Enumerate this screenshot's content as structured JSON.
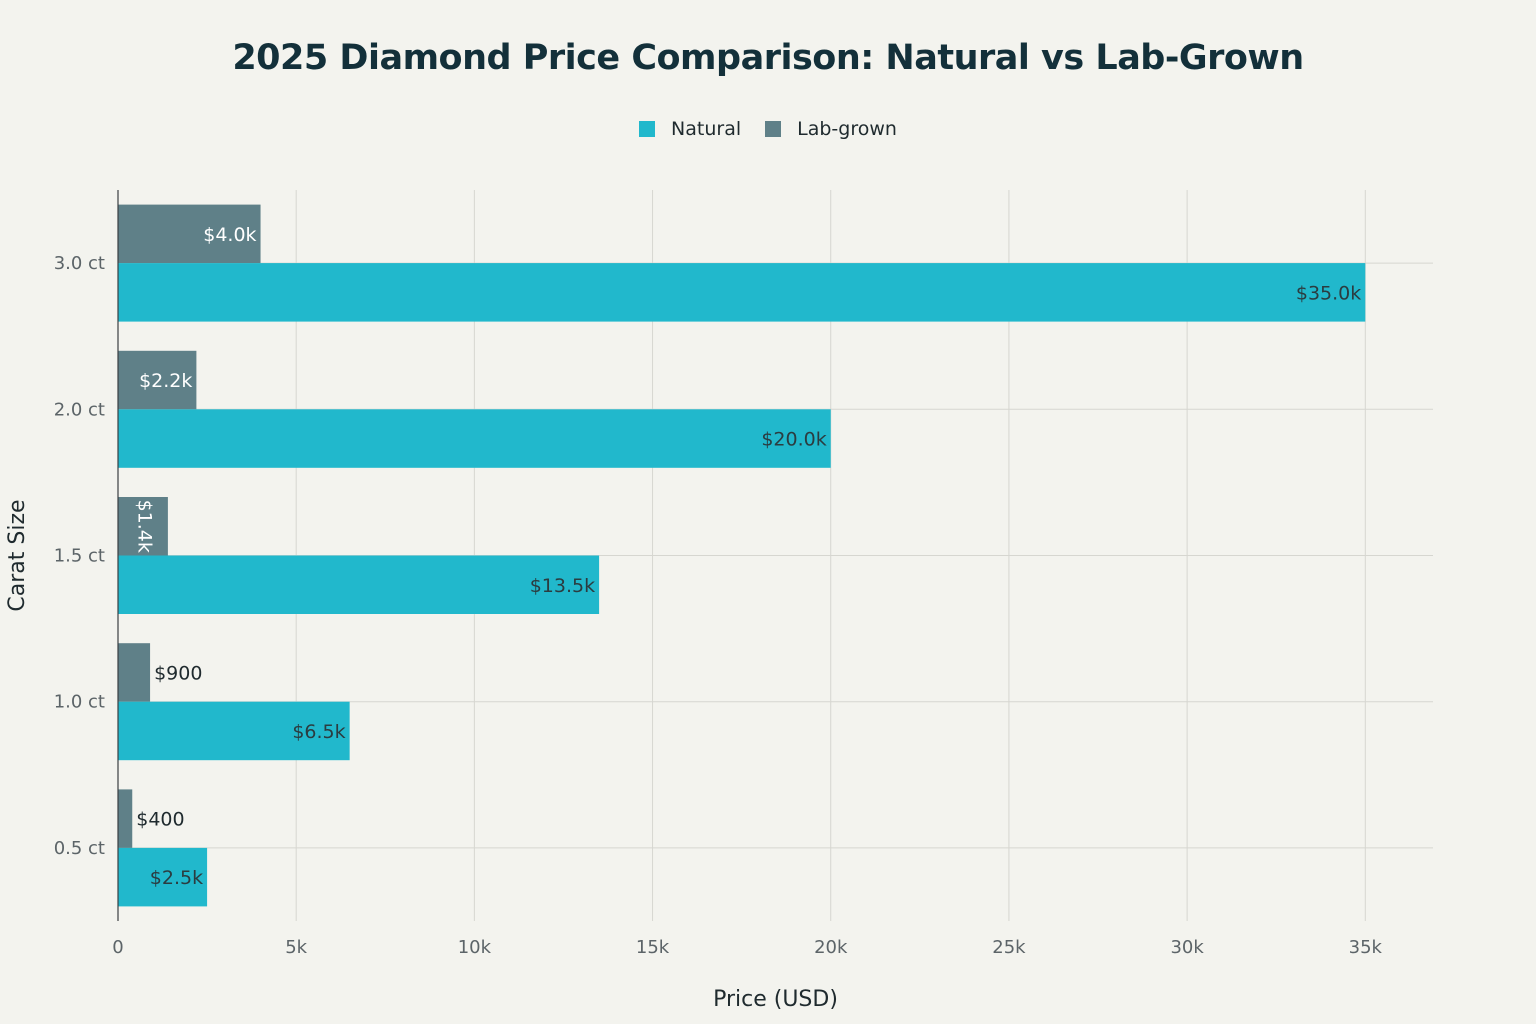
{
  "chart_data": {
    "type": "bar",
    "orientation": "horizontal",
    "title": "2025 Diamond Price Comparison: Natural vs Lab-Grown",
    "xlabel": "Price (USD)",
    "ylabel": "Carat Size",
    "xlim": [
      0,
      36900
    ],
    "xticks": [
      0,
      5000,
      10000,
      15000,
      20000,
      25000,
      30000,
      35000
    ],
    "xtick_labels": [
      "0",
      "5k",
      "10k",
      "15k",
      "20k",
      "25k",
      "30k",
      "35k"
    ],
    "categories": [
      "0.5 ct",
      "1.0 ct",
      "1.5 ct",
      "2.0 ct",
      "3.0 ct"
    ],
    "legend_position": "top-center",
    "grid": true,
    "series": [
      {
        "name": "Natural",
        "color": "#21b8cc",
        "values": [
          2500,
          6500,
          13500,
          20000,
          35000
        ],
        "labels": [
          "$2.5k",
          "$6.5k",
          "$13.5k",
          "$20.0k",
          "$35.0k"
        ]
      },
      {
        "name": "Lab-grown",
        "color": "#5f8088",
        "values": [
          400,
          900,
          1400,
          2200,
          4000
        ],
        "labels": [
          "$400",
          "$900",
          "$1.4k",
          "$2.2k",
          "$4.0k"
        ]
      }
    ]
  }
}
